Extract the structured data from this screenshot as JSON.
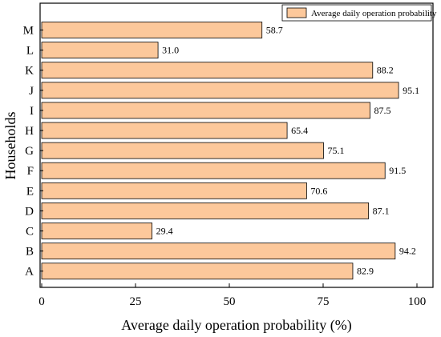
{
  "chart_data": {
    "type": "bar",
    "orientation": "horizontal",
    "categories": [
      "M",
      "L",
      "K",
      "J",
      "I",
      "H",
      "G",
      "F",
      "E",
      "D",
      "C",
      "B",
      "A"
    ],
    "values": [
      58.7,
      31.0,
      88.2,
      95.1,
      87.5,
      65.4,
      75.1,
      91.5,
      70.6,
      87.1,
      29.4,
      94.2,
      82.9
    ],
    "value_labels": [
      "58.7",
      "31.0",
      "88.2",
      "95.1",
      "87.5",
      "65.4",
      "75.1",
      "91.5",
      "70.6",
      "87.1",
      "29.4",
      "94.2",
      "82.9"
    ],
    "series": [
      {
        "name": "Average daily operation probability"
      }
    ],
    "xlabel": "Average daily operation probability (%)",
    "ylabel": "Households",
    "xlim": [
      0,
      100
    ],
    "xticks": [
      "0",
      "25",
      "50",
      "75",
      "100"
    ],
    "grid": false,
    "legend_position": "top-right",
    "bar_color": "#fcc89b",
    "bar_edge_color": "#000000"
  }
}
